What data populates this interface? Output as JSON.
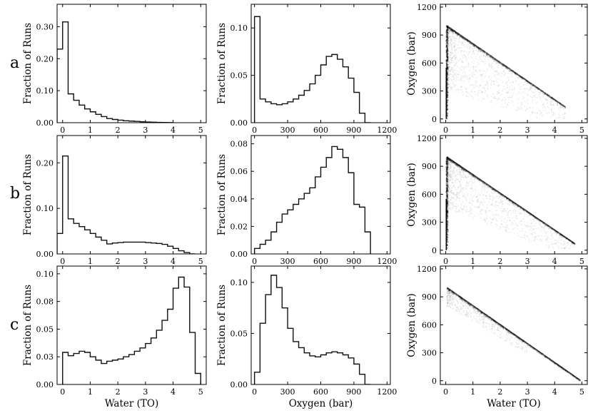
{
  "figure": {
    "row_labels": [
      "a",
      "b",
      "c"
    ],
    "hist_ylabel": "Fraction of Runs",
    "scatter_ylabel": "Oxygen (bar)",
    "water_xlabel": "Water (TO)",
    "oxygen_xlabel": "Oxygen (bar)"
  },
  "chart_data": [
    {
      "type": "bar",
      "panel": "a-water",
      "row": 0,
      "col": 0,
      "title": "",
      "xlabel": "",
      "ylabel": "Fraction of Runs",
      "xlim": [
        -0.2,
        5.2
      ],
      "ylim": [
        0,
        0.37
      ],
      "xticks": [
        0,
        1,
        2,
        3,
        4,
        5
      ],
      "yticks": [
        0.0,
        0.1,
        0.2,
        0.3
      ],
      "yticklabels": [
        "0.00",
        "0.10",
        "0.20",
        "0.30"
      ],
      "bin_edges": [
        -0.2,
        0,
        0.2,
        0.4,
        0.6,
        0.8,
        1.0,
        1.2,
        1.4,
        1.6,
        1.8,
        2.0,
        2.2,
        2.4,
        2.6,
        2.8,
        3.0,
        3.2,
        3.4,
        3.6,
        3.8,
        4.0
      ],
      "values": [
        0.23,
        0.315,
        0.09,
        0.07,
        0.055,
        0.043,
        0.034,
        0.026,
        0.019,
        0.013,
        0.01,
        0.008,
        0.006,
        0.005,
        0.004,
        0.003,
        0.002,
        0.0015,
        0.001,
        0.0006,
        0.0003
      ]
    },
    {
      "type": "bar",
      "panel": "a-oxygen",
      "row": 0,
      "col": 1,
      "title": "",
      "xlabel": "",
      "ylabel": "Fraction of Runs",
      "xlim": [
        -30,
        1230
      ],
      "ylim": [
        0,
        0.125
      ],
      "xticks": [
        0,
        300,
        600,
        900,
        1200
      ],
      "yticks": [
        0.0,
        0.05,
        0.1
      ],
      "yticklabels": [
        "0.00",
        "0.05",
        "0.10"
      ],
      "bin_edges": [
        0,
        50,
        100,
        150,
        200,
        250,
        300,
        350,
        400,
        450,
        500,
        550,
        600,
        650,
        700,
        750,
        800,
        850,
        900,
        950,
        1000,
        1050
      ],
      "values": [
        0.112,
        0.025,
        0.022,
        0.02,
        0.019,
        0.02,
        0.022,
        0.025,
        0.029,
        0.034,
        0.041,
        0.05,
        0.061,
        0.07,
        0.072,
        0.067,
        0.059,
        0.047,
        0.032,
        0.01,
        0.0
      ]
    },
    {
      "type": "scatter",
      "panel": "a-scatter",
      "row": 0,
      "col": 2,
      "title": "",
      "xlabel": "",
      "ylabel": "Oxygen (bar)",
      "xlim": [
        -0.2,
        5.2
      ],
      "ylim": [
        -40,
        1230
      ],
      "xticks": [
        0,
        1,
        2,
        3,
        4,
        5
      ],
      "yticks": [
        0,
        300,
        600,
        900,
        1200
      ],
      "edge_start": [
        0.05,
        1000
      ],
      "edge_end": [
        4.4,
        130
      ],
      "vertical_line_x": 0.02,
      "vertical_line_y": [
        0,
        1000
      ]
    },
    {
      "type": "bar",
      "panel": "b-water",
      "row": 1,
      "col": 0,
      "title": "",
      "xlabel": "",
      "ylabel": "Fraction of Runs",
      "xlim": [
        -0.2,
        5.2
      ],
      "ylim": [
        0,
        0.26
      ],
      "xticks": [
        0,
        1,
        2,
        3,
        4,
        5
      ],
      "yticks": [
        0.0,
        0.1,
        0.2
      ],
      "yticklabels": [
        "0.00",
        "0.10",
        "0.20"
      ],
      "bin_edges": [
        -0.2,
        0,
        0.2,
        0.4,
        0.6,
        0.8,
        1.0,
        1.2,
        1.4,
        1.6,
        1.8,
        2.0,
        2.2,
        2.4,
        2.6,
        2.8,
        3.0,
        3.2,
        3.4,
        3.6,
        3.8,
        4.0,
        4.2,
        4.4,
        4.6,
        4.8
      ],
      "values": [
        0.045,
        0.215,
        0.077,
        0.067,
        0.06,
        0.053,
        0.045,
        0.037,
        0.03,
        0.022,
        0.024,
        0.025,
        0.026,
        0.026,
        0.026,
        0.026,
        0.025,
        0.024,
        0.023,
        0.021,
        0.017,
        0.012,
        0.007,
        0.003,
        0.0
      ]
    },
    {
      "type": "bar",
      "panel": "b-oxygen",
      "row": 1,
      "col": 1,
      "title": "",
      "xlabel": "",
      "ylabel": "Fraction of Runs",
      "xlim": [
        -30,
        1230
      ],
      "ylim": [
        0,
        0.086
      ],
      "xticks": [
        0,
        300,
        600,
        900,
        1200
      ],
      "yticks": [
        0.0,
        0.02,
        0.04,
        0.06,
        0.08
      ],
      "yticklabels": [
        "0.00",
        "0.02",
        "0.04",
        "0.06",
        "0.08"
      ],
      "bin_edges": [
        0,
        50,
        100,
        150,
        200,
        250,
        300,
        350,
        400,
        450,
        500,
        550,
        600,
        650,
        700,
        750,
        800,
        850,
        900,
        950,
        1000,
        1050
      ],
      "values": [
        0.004,
        0.007,
        0.01,
        0.016,
        0.023,
        0.029,
        0.032,
        0.036,
        0.04,
        0.044,
        0.048,
        0.056,
        0.063,
        0.07,
        0.078,
        0.076,
        0.07,
        0.059,
        0.036,
        0.034,
        0.016
      ]
    },
    {
      "type": "scatter",
      "panel": "b-scatter",
      "row": 1,
      "col": 2,
      "title": "",
      "xlabel": "",
      "ylabel": "Oxygen (bar)",
      "xlim": [
        -0.2,
        5.2
      ],
      "ylim": [
        -40,
        1230
      ],
      "xticks": [
        0,
        1,
        2,
        3,
        4,
        5
      ],
      "yticks": [
        0,
        300,
        600,
        900,
        1200
      ],
      "edge_start": [
        0.05,
        1000
      ],
      "edge_end": [
        4.75,
        70
      ],
      "vertical_line_x": 0.02,
      "vertical_line_y": [
        0,
        1000
      ]
    },
    {
      "type": "bar",
      "panel": "c-water",
      "row": 2,
      "col": 0,
      "title": "",
      "xlabel": "Water (TO)",
      "ylabel": "Fraction of Runs",
      "xlim": [
        -0.2,
        5.2
      ],
      "ylim": [
        0,
        0.107
      ],
      "xticks": [
        0,
        1,
        2,
        3,
        4,
        5
      ],
      "yticks": [
        0.0,
        0.025,
        0.05,
        0.075,
        0.1
      ],
      "yticklabels": [
        "0.00",
        "0.03",
        "0.05",
        "0.08",
        "0.10"
      ],
      "bin_edges": [
        0,
        0.2,
        0.4,
        0.6,
        0.8,
        1.0,
        1.2,
        1.4,
        1.6,
        1.8,
        2.0,
        2.2,
        2.4,
        2.6,
        2.8,
        3.0,
        3.2,
        3.4,
        3.6,
        3.8,
        4.0,
        4.2,
        4.4,
        4.6,
        4.8,
        5.0
      ],
      "values": [
        0.029,
        0.026,
        0.028,
        0.03,
        0.029,
        0.025,
        0.022,
        0.019,
        0.021,
        0.022,
        0.023,
        0.025,
        0.027,
        0.03,
        0.033,
        0.037,
        0.042,
        0.049,
        0.058,
        0.068,
        0.087,
        0.097,
        0.088,
        0.047,
        0.01
      ]
    },
    {
      "type": "bar",
      "panel": "c-oxygen",
      "row": 2,
      "col": 1,
      "title": "",
      "xlabel": "Oxygen (bar)",
      "ylabel": "Fraction of Runs",
      "xlim": [
        -30,
        1230
      ],
      "ylim": [
        0,
        0.116
      ],
      "xticks": [
        0,
        300,
        600,
        900,
        1200
      ],
      "yticks": [
        0.0,
        0.05,
        0.1
      ],
      "yticklabels": [
        "0.00",
        "0.05",
        "0.10"
      ],
      "bin_edges": [
        0,
        50,
        100,
        150,
        200,
        250,
        300,
        350,
        400,
        450,
        500,
        550,
        600,
        650,
        700,
        750,
        800,
        850,
        900,
        950,
        1000,
        1050
      ],
      "values": [
        0.012,
        0.06,
        0.088,
        0.107,
        0.095,
        0.075,
        0.055,
        0.042,
        0.036,
        0.031,
        0.028,
        0.027,
        0.029,
        0.031,
        0.032,
        0.031,
        0.029,
        0.026,
        0.02,
        0.01,
        0.0
      ]
    },
    {
      "type": "scatter",
      "panel": "c-scatter",
      "row": 2,
      "col": 2,
      "title": "",
      "xlabel": "Water (TO)",
      "ylabel": "Oxygen (bar)",
      "xlim": [
        -0.2,
        5.2
      ],
      "ylim": [
        -40,
        1230
      ],
      "xticks": [
        0,
        1,
        2,
        3,
        4,
        5
      ],
      "yticks": [
        0,
        300,
        600,
        900,
        1200
      ],
      "edge_start": [
        0.05,
        1000
      ],
      "edge_end": [
        4.95,
        5
      ],
      "vertical_line_x": null,
      "vertical_line_y": null
    }
  ]
}
